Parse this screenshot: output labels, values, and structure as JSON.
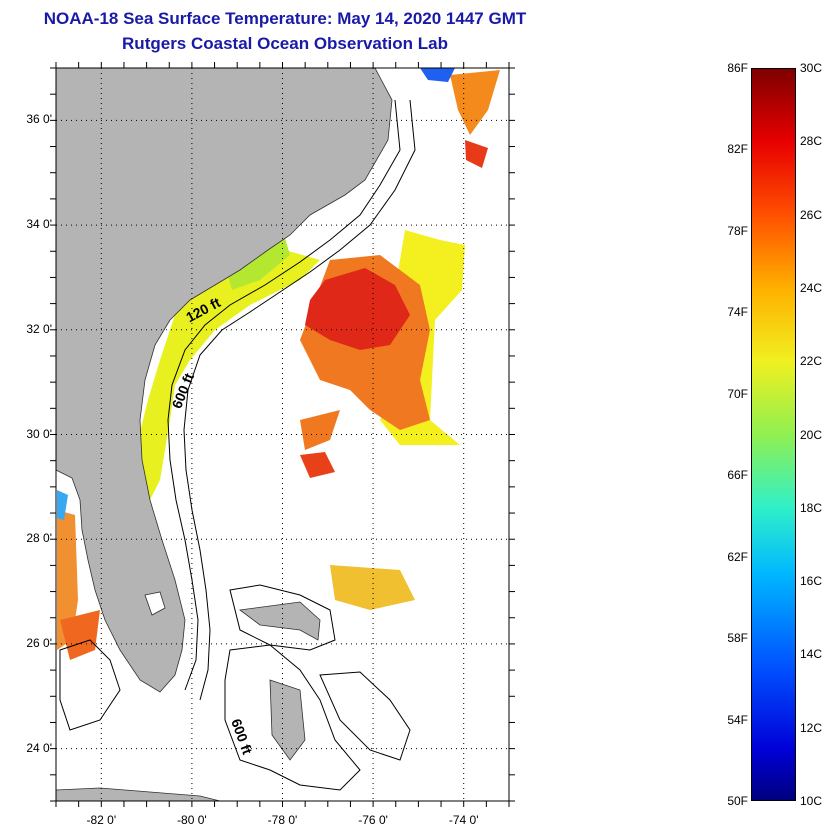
{
  "title": {
    "line1": "NOAA-18 Sea Surface Temperature:  May 14, 2020 1447 GMT",
    "line2": "Rutgers Coastal Ocean Observation Lab"
  },
  "map": {
    "lon_range": [
      -83,
      -73
    ],
    "lat_range": [
      23,
      37
    ],
    "y_ticks": [
      {
        "value": 36,
        "label": "36 0'"
      },
      {
        "value": 34,
        "label": "34 0'"
      },
      {
        "value": 32,
        "label": "32 0'"
      },
      {
        "value": 30,
        "label": "30 0'"
      },
      {
        "value": 28,
        "label": "28 0'"
      },
      {
        "value": 26,
        "label": "26 0'"
      },
      {
        "value": 24,
        "label": "24 0'"
      }
    ],
    "x_ticks": [
      {
        "value": -82,
        "label": "-82 0'"
      },
      {
        "value": -80,
        "label": "-80 0'"
      },
      {
        "value": -78,
        "label": "-78 0'"
      },
      {
        "value": -76,
        "label": "-76 0'"
      },
      {
        "value": -74,
        "label": "-74 0'"
      }
    ],
    "contour_labels": [
      {
        "text": "120 ft",
        "lon": -79.7,
        "lat": 32.3,
        "rotate": -28
      },
      {
        "text": "600 ft",
        "lon": -80.1,
        "lat": 30.8,
        "rotate": -68
      },
      {
        "text": "600 ft",
        "lon": -79.0,
        "lat": 24.2,
        "rotate": 70
      }
    ],
    "land_color": "#b4b4b4",
    "grid": true
  },
  "colorbar": {
    "fahrenheit": [
      "86F",
      "82F",
      "78F",
      "74F",
      "70F",
      "66F",
      "62F",
      "58F",
      "54F",
      "50F"
    ],
    "celsius": [
      "30C",
      "28C",
      "26C",
      "24C",
      "22C",
      "20C",
      "18C",
      "16C",
      "14C",
      "12C",
      "10C"
    ]
  }
}
